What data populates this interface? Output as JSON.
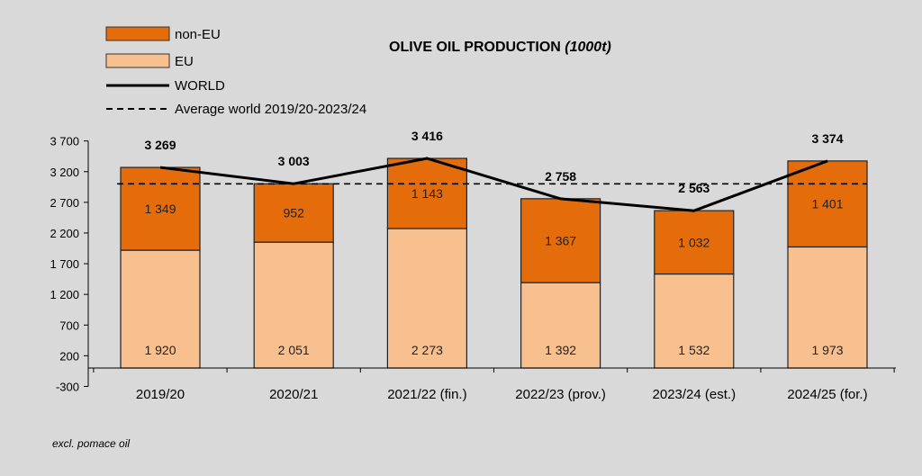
{
  "chart_data": {
    "type": "bar",
    "stacked": true,
    "title": "OLIVE OIL PRODUCTION",
    "title_unit": "(1000t)",
    "categories": [
      "2019/20",
      "2020/21",
      "2021/22 (fin.)",
      "2022/23 (prov.)",
      "2023/24 (est.)",
      "2024/25 (for.)"
    ],
    "series": [
      {
        "name": "EU",
        "values": [
          1920,
          2051,
          2273,
          1392,
          1532,
          1973
        ],
        "labels": [
          "1 920",
          "2 051",
          "2 273",
          "1 392",
          "1 532",
          "1 973"
        ],
        "color": "#f9c08f"
      },
      {
        "name": "non-EU",
        "values": [
          1349,
          952,
          1143,
          1367,
          1032,
          1401
        ],
        "labels": [
          "1 349",
          "952",
          "1 143",
          "1 367",
          "1 032",
          "1 401"
        ],
        "color": "#e46c0a"
      }
    ],
    "line_series": {
      "name": "WORLD",
      "values": [
        3269,
        3003,
        3416,
        2758,
        2563,
        3374
      ],
      "labels": [
        "3 269",
        "3 003",
        "3 416",
        "2 758",
        "2 563",
        "3 374"
      ],
      "color": "#000000"
    },
    "reference_line": {
      "name": "Average world 2019/20-2023/24",
      "value": 3002,
      "style": "dashed"
    },
    "yticks": [
      {
        "value": -300,
        "label": "-300"
      },
      {
        "value": 200,
        "label": "200"
      },
      {
        "value": 700,
        "label": "700"
      },
      {
        "value": 1200,
        "label": "1 200"
      },
      {
        "value": 1700,
        "label": "1 700"
      },
      {
        "value": 2200,
        "label": "2 200"
      },
      {
        "value": 2700,
        "label": "2 700"
      },
      {
        "value": 3200,
        "label": "3 200"
      },
      {
        "value": 3700,
        "label": "3 700"
      }
    ],
    "ylim": [
      -300,
      3700
    ],
    "grid": false,
    "legend_position": "top-left",
    "footnote": "excl. pomace oil"
  }
}
